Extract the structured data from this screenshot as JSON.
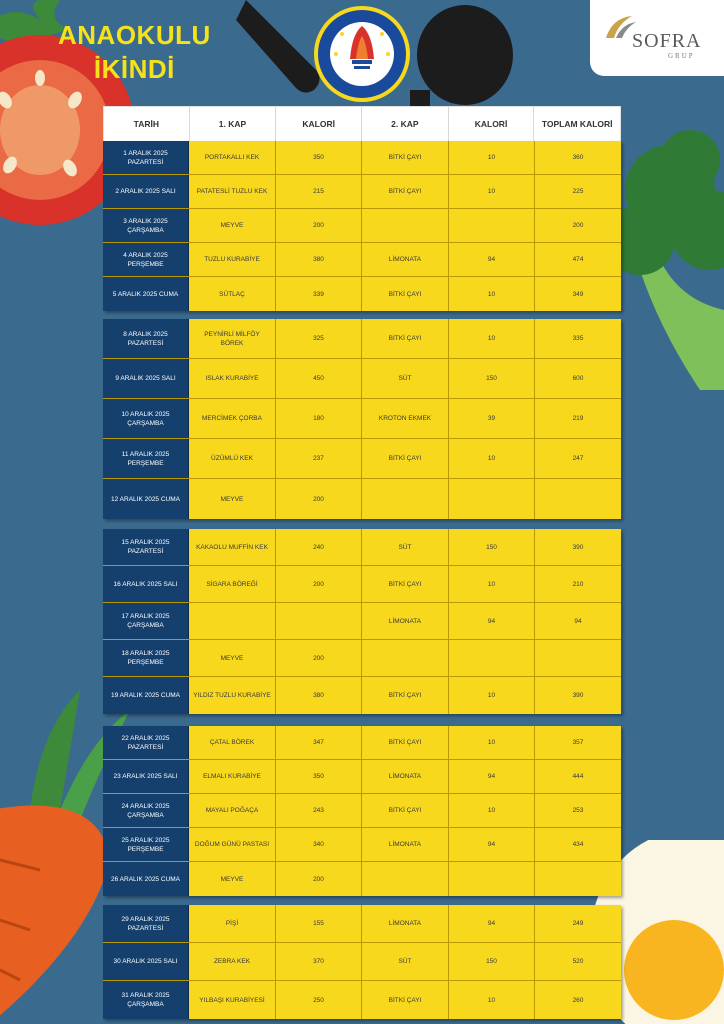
{
  "title": {
    "line1": "ANAOKULU",
    "line2": "İKİNDİ"
  },
  "school_logo_text": "TED ESKİŞEHİR KOLEJİ",
  "brand": {
    "name": "SOFRA",
    "sub": "GRUP"
  },
  "colors": {
    "background": "#3b6a8f",
    "row": "#f7d81d",
    "date_cell": "#15406e",
    "title": "#f5e21a"
  },
  "table": {
    "headers": [
      "TARİH",
      "1. KAP",
      "KALORİ",
      "2. KAP",
      "KALORİ",
      "TOPLAM KALORİ"
    ],
    "weeks": [
      {
        "rows": [
          {
            "date": "1 ARALIK 2025 PAZARTESİ",
            "kap1": "PORTAKALLI KEK",
            "kal1": "350",
            "kap2": "BİTKİ ÇAYI",
            "kal2": "10",
            "total": "360"
          },
          {
            "date": "2 ARALIK 2025 SALI",
            "kap1": "PATATESLİ TUZLU KEK",
            "kal1": "215",
            "kap2": "BİTKİ ÇAYI",
            "kal2": "10",
            "total": "225"
          },
          {
            "date": "3 ARALIK 2025 ÇARŞAMBA",
            "kap1": "MEYVE",
            "kal1": "200",
            "kap2": "",
            "kal2": "",
            "total": "200"
          },
          {
            "date": "4 ARALIK 2025 PERŞEMBE",
            "kap1": "TUZLU KURABİYE",
            "kal1": "380",
            "kap2": "LİMONATA",
            "kal2": "94",
            "total": "474"
          },
          {
            "date": "5 ARALIK 2025 CUMA",
            "kap1": "SÜTLAÇ",
            "kal1": "339",
            "kap2": "BİTKİ ÇAYI",
            "kal2": "10",
            "total": "349"
          }
        ]
      },
      {
        "rows": [
          {
            "date": "8 ARALIK 2025 PAZARTESİ",
            "kap1": "PEYNİRLİ MİLFÖY BÖREK",
            "kal1": "325",
            "kap2": "BİTKİ ÇAYI",
            "kal2": "10",
            "total": "335"
          },
          {
            "date": "9 ARALIK 2025 SALI",
            "kap1": "ISLAK KURABİYE",
            "kal1": "450",
            "kap2": "SÜT",
            "kal2": "150",
            "total": "600"
          },
          {
            "date": "10 ARALIK 2025 ÇARŞAMBA",
            "kap1": "MERCİMEK ÇORBA",
            "kal1": "180",
            "kap2": "KROTON EKMEK",
            "kal2": "39",
            "total": "219"
          },
          {
            "date": "11 ARALIK 2025 PERŞEMBE",
            "kap1": "ÜZÜMLÜ KEK",
            "kal1": "237",
            "kap2": "BİTKİ ÇAYI",
            "kal2": "10",
            "total": "247"
          },
          {
            "date": "12 ARALIK 2025 CUMA",
            "kap1": "MEYVE",
            "kal1": "200",
            "kap2": "",
            "kal2": "",
            "total": ""
          }
        ]
      },
      {
        "rows": [
          {
            "date": "15 ARALIK 2025 PAZARTESİ",
            "kap1": "KAKAOLU MUFFİN KEK",
            "kal1": "240",
            "kap2": "SÜT",
            "kal2": "150",
            "total": "390"
          },
          {
            "date": "16 ARALIK 2025 SALI",
            "kap1": "SİGARA BÖREĞİ",
            "kal1": "200",
            "kap2": "BİTKİ ÇAYI",
            "kal2": "10",
            "total": "210"
          },
          {
            "date": "17 ARALIK 2025 ÇARŞAMBA",
            "kap1": "",
            "kal1": "",
            "kap2": "LİMONATA",
            "kal2": "94",
            "total": "94"
          },
          {
            "date": "18 ARALIK 2025 PERŞEMBE",
            "kap1": "MEYVE",
            "kal1": "200",
            "kap2": "",
            "kal2": "",
            "total": ""
          },
          {
            "date": "19 ARALIK 2025 CUMA",
            "kap1": "YILDIZ TUZLU KURABİYE",
            "kal1": "380",
            "kap2": "BİTKİ ÇAYI",
            "kal2": "10",
            "total": "390"
          }
        ]
      },
      {
        "rows": [
          {
            "date": "22 ARALIK 2025 PAZARTESİ",
            "kap1": "ÇATAL BÖREK",
            "kal1": "347",
            "kap2": "BİTKİ ÇAYI",
            "kal2": "10",
            "total": "357"
          },
          {
            "date": "23 ARALIK 2025 SALI",
            "kap1": "ELMALI KURABİYE",
            "kal1": "350",
            "kap2": "LİMONATA",
            "kal2": "94",
            "total": "444"
          },
          {
            "date": "24 ARALIK 2025 ÇARŞAMBA",
            "kap1": "MAYALI POĞAÇA",
            "kal1": "243",
            "kap2": "BİTKİ ÇAYI",
            "kal2": "10",
            "total": "253"
          },
          {
            "date": "25 ARALIK 2025 PERŞEMBE",
            "kap1": "DOĞUM GÜNÜ PASTASI",
            "kal1": "340",
            "kap2": "LİMONATA",
            "kal2": "94",
            "total": "434"
          },
          {
            "date": "26 ARALIK 2025 CUMA",
            "kap1": "MEYVE",
            "kal1": "200",
            "kap2": "",
            "kal2": "",
            "total": ""
          }
        ]
      },
      {
        "rows": [
          {
            "date": "29 ARALIK 2025 PAZARTESİ",
            "kap1": "PİŞİ",
            "kal1": "155",
            "kap2": "LİMONATA",
            "kal2": "94",
            "total": "249"
          },
          {
            "date": "30 ARALIK 2025 SALI",
            "kap1": "ZEBRA KEK",
            "kal1": "370",
            "kap2": "SÜT",
            "kal2": "150",
            "total": "520"
          },
          {
            "date": "31 ARALIK 2025 ÇARŞAMBA",
            "kap1": "YILBAŞI KURABİYESİ",
            "kal1": "250",
            "kap2": "BİTKİ ÇAYI",
            "kal2": "10",
            "total": "260"
          }
        ]
      }
    ]
  }
}
